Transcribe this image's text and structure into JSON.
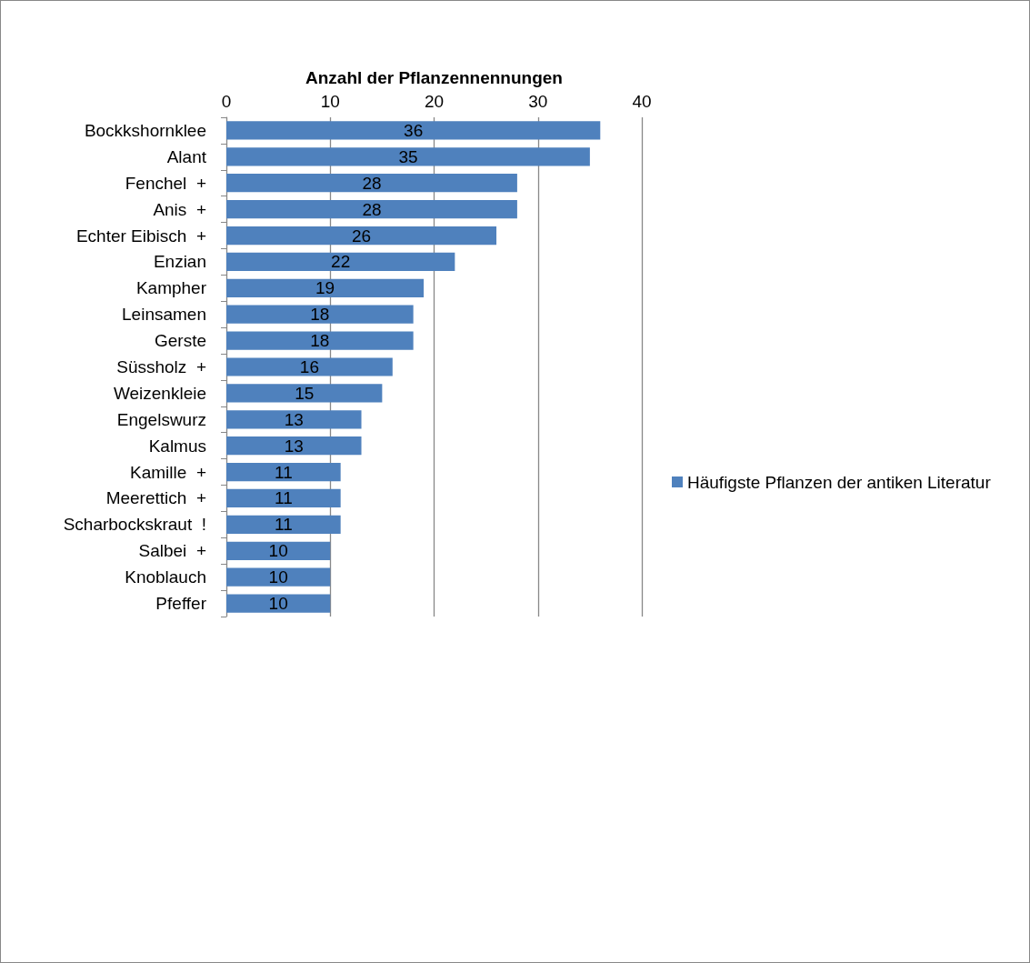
{
  "chart_data": {
    "type": "bar",
    "orientation": "horizontal",
    "xlabel": "Anzahl der Pflanzennennungen",
    "categories": [
      "Bockkshornklee",
      "Alant",
      "Fenchel  +",
      "Anis  +",
      "Echter Eibisch  +",
      "Enzian",
      "Kampher",
      "Leinsamen",
      "Gerste",
      "Süssholz  +",
      "Weizenkleie",
      "Engelswurz",
      "Kalmus",
      "Kamille  +",
      "Meerettich  +",
      "Scharbockskraut  !",
      "Salbei  +",
      "Knoblauch",
      "Pfeffer"
    ],
    "series": [
      {
        "name": "Häufigste Pflanzen der antiken Literatur",
        "color": "#4f81bd",
        "values": [
          36,
          35,
          28,
          28,
          26,
          22,
          19,
          18,
          18,
          16,
          15,
          13,
          13,
          11,
          11,
          11,
          10,
          10,
          10
        ]
      }
    ],
    "xlim": [
      0,
      40
    ],
    "xticks": [
      0,
      10,
      20,
      30,
      40
    ],
    "grid": "x",
    "legend": "right",
    "data_labels": true
  }
}
